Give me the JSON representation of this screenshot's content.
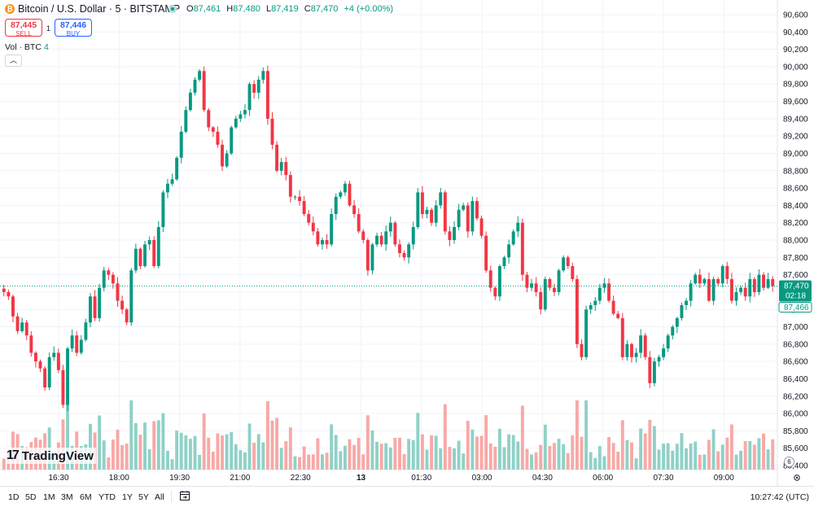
{
  "header": {
    "symbol_title": "Bitcoin / U.S. Dollar · 5 · BITSTAMP",
    "ohlc": {
      "o_label": "O",
      "o": "87,461",
      "h_label": "H",
      "h": "87,480",
      "l_label": "L",
      "l": "87,419",
      "c_label": "C",
      "c": "87,470",
      "change": "+4 (+0.00%)"
    }
  },
  "trade": {
    "sell_price": "87,445",
    "sell_label": "SELL",
    "spread": "1",
    "buy_price": "87,446",
    "buy_label": "BUY"
  },
  "volume_legend": {
    "label": "Vol · BTC",
    "value": "4"
  },
  "colors": {
    "up": "#089981",
    "down": "#f23645",
    "up_vol": "#8fd1c6",
    "down_vol": "#f7a9a7",
    "accent": "#2962ff"
  },
  "icons": {
    "logo": "bitcoin-icon",
    "collapse": "chevron-up-icon",
    "calendar": "calendar-range-icon",
    "settings": "gear-icon",
    "eye": "eye-icon"
  },
  "chart_data": {
    "type": "candlestick",
    "price_axis": {
      "min": 85400,
      "max": 90600,
      "step": 200,
      "ticks": [
        "90,600",
        "90,400",
        "90,200",
        "90,000",
        "89,800",
        "89,600",
        "89,400",
        "89,200",
        "89,000",
        "88,800",
        "88,600",
        "88,400",
        "88,200",
        "88,000",
        "87,800",
        "87,600",
        "87,400",
        "87,200",
        "87,000",
        "86,800",
        "86,600",
        "86,400",
        "86,200",
        "86,000",
        "85,800",
        "85,600",
        "85,400"
      ]
    },
    "time_axis": [
      "16:30",
      "18:00",
      "19:30",
      "21:00",
      "22:30",
      "13",
      "01:30",
      "03:00",
      "04:30",
      "06:00",
      "07:30",
      "09:00"
    ],
    "last_price": {
      "price": "87,470",
      "countdown": "02:18",
      "value": 87470
    },
    "bid_price": {
      "price": "87,466",
      "value": 87466
    },
    "closes": [
      87400,
      87350,
      87120,
      86950,
      87050,
      86900,
      86700,
      86600,
      86520,
      86300,
      86650,
      86700,
      86500,
      86100,
      86750,
      86900,
      86700,
      86850,
      87050,
      87350,
      87100,
      87450,
      87650,
      87600,
      87500,
      87300,
      87200,
      87050,
      87650,
      87900,
      87700,
      87950,
      88000,
      87700,
      88150,
      88550,
      88650,
      88700,
      88950,
      89250,
      89500,
      89700,
      89850,
      89950,
      89500,
      89300,
      89250,
      89100,
      88850,
      89000,
      89300,
      89400,
      89450,
      89500,
      89800,
      89700,
      89850,
      89950,
      89400,
      89100,
      88800,
      88900,
      88750,
      88500,
      88500,
      88450,
      88300,
      88200,
      88100,
      87950,
      88000,
      87950,
      88300,
      88500,
      88550,
      88650,
      88400,
      88300,
      88100,
      88000,
      87650,
      87950,
      88050,
      87950,
      88100,
      88200,
      87950,
      87850,
      87800,
      87950,
      88150,
      88550,
      88300,
      88350,
      88200,
      88400,
      88550,
      88100,
      88000,
      88150,
      88350,
      88400,
      88100,
      88450,
      88250,
      88050,
      87650,
      87450,
      87350,
      87700,
      87800,
      87950,
      88100,
      88200,
      87600,
      87450,
      87500,
      87400,
      87200,
      87550,
      87450,
      87400,
      87650,
      87800,
      87700,
      87550,
      86800,
      86650,
      87200,
      87250,
      87300,
      87450,
      87500,
      87300,
      87150,
      87100,
      86650,
      86800,
      86650,
      86700,
      86900,
      86650,
      86350,
      86600,
      86650,
      86750,
      86900,
      87000,
      87100,
      87250,
      87300,
      87500,
      87600,
      87500,
      87550,
      87300,
      87550,
      87500,
      87700,
      87550,
      87300,
      87400,
      87450,
      87350,
      87550,
      87400,
      87600,
      87450,
      87550,
      87470
    ],
    "volume_axis_note": "relative"
  },
  "bottom_bar": {
    "ranges": [
      "1D",
      "5D",
      "1M",
      "3M",
      "6M",
      "YTD",
      "1Y",
      "5Y",
      "All"
    ],
    "clock": "10:27:42 (UTC)"
  },
  "watermark": "TradingView"
}
